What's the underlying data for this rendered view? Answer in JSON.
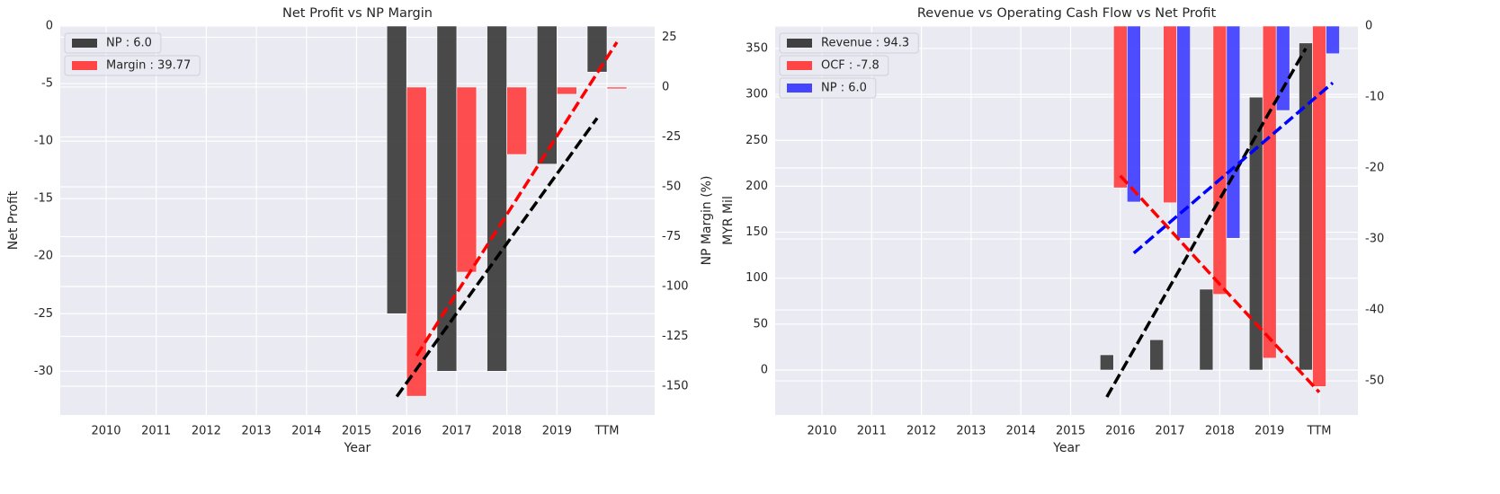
{
  "chart_data": [
    {
      "type": "bar",
      "title": "Net Profit vs NP Margin",
      "x_label": "Year",
      "y_label": "Net Profit",
      "y2_label": "NP Margin (%)",
      "categories": [
        "2010",
        "2011",
        "2012",
        "2013",
        "2014",
        "2015",
        "2016",
        "2017",
        "2018",
        "2019",
        "TTM"
      ],
      "ylim": [
        -33.8,
        0
      ],
      "yticks": [
        -30,
        -25,
        -20,
        -15,
        -10,
        -5,
        0
      ],
      "y2lim": [
        -164.4,
        30.6
      ],
      "y2ticks": [
        -150,
        -125,
        -100,
        -75,
        -50,
        -25,
        0,
        25
      ],
      "grid": true,
      "legend": "upper left",
      "series": [
        {
          "name": "NP : 6.0",
          "color": "#404040",
          "values": [
            null,
            null,
            null,
            null,
            null,
            null,
            -25,
            -30,
            -30,
            -12,
            -4
          ]
        },
        {
          "name": "Margin : 39.77",
          "color": "#ff4545",
          "axis": "y2",
          "values": [
            null,
            null,
            null,
            null,
            null,
            null,
            -155,
            -92.8,
            -33.8,
            -3.6,
            -0.9
          ]
        }
      ],
      "trendlines": [
        {
          "color": "#000000",
          "values": [
            null,
            null,
            null,
            null,
            null,
            null,
            -32.2,
            -26.15,
            -20.1,
            -14.05,
            -8.0
          ]
        },
        {
          "color": "#ff0000",
          "axis": "y2",
          "values": [
            null,
            null,
            null,
            null,
            null,
            null,
            -134.7,
            -95.4,
            -56.1,
            -16.8,
            22.5
          ]
        }
      ]
    },
    {
      "type": "bar",
      "title": "Revenue vs Operating Cash Flow vs Net Profit",
      "x_label": "Year",
      "y_label": "MYR Mil",
      "categories": [
        "2010",
        "2011",
        "2012",
        "2013",
        "2014",
        "2015",
        "2016",
        "2017",
        "2018",
        "2019",
        "TTM"
      ],
      "ylim": [
        -48.9,
        374.4
      ],
      "yticks": [
        0,
        50,
        100,
        150,
        200,
        250,
        300,
        350
      ],
      "y2lim": [
        -54.8,
        0
      ],
      "y2ticks": [
        -50,
        -40,
        -30,
        -20,
        -10,
        0
      ],
      "grid": true,
      "legend": "upper left",
      "series": [
        {
          "name": "Revenue : 94.3",
          "color": "#404040",
          "values": [
            null,
            null,
            null,
            null,
            null,
            null,
            16.6,
            33,
            88,
            297,
            356
          ]
        },
        {
          "name": "OCF : -7.8",
          "color": "#ff4545",
          "axis": "y2",
          "values": [
            null,
            null,
            null,
            null,
            null,
            null,
            -22.8,
            -24.9,
            -37.8,
            -46.8,
            -50.8
          ]
        },
        {
          "name": "NP : 6.0",
          "color": "#4545ff",
          "axis": "y2",
          "values": [
            null,
            null,
            null,
            null,
            null,
            null,
            -24.8,
            -29.9,
            -29.9,
            -11.9,
            -3.9
          ]
        }
      ],
      "trendlines": [
        {
          "color": "#000000",
          "values": [
            null,
            null,
            null,
            null,
            null,
            null,
            -29.3,
            65.5,
            160.4,
            255.2,
            350
          ]
        },
        {
          "color": "#ff0000",
          "axis": "y2",
          "values": [
            null,
            null,
            null,
            null,
            null,
            null,
            -21.1,
            -28.7,
            -36.4,
            -44.0,
            -51.6
          ]
        },
        {
          "color": "#0000ff",
          "axis": "y2",
          "values": [
            null,
            null,
            null,
            null,
            null,
            null,
            -32,
            -26,
            -20,
            -14,
            -8
          ]
        }
      ]
    }
  ]
}
